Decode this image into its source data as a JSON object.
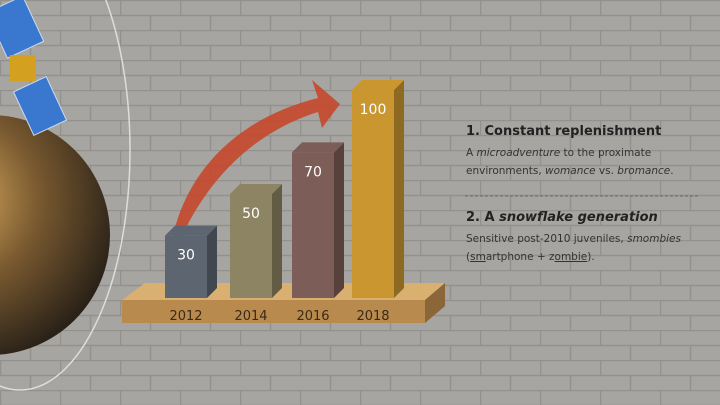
{
  "chart_data": {
    "type": "bar3d",
    "categories": [
      "2012",
      "2014",
      "2016",
      "2018"
    ],
    "values": [
      30,
      50,
      70,
      100
    ],
    "colors": [
      "#5d6670",
      "#8c8462",
      "#7d5d57",
      "#c9962f"
    ]
  },
  "notes": [
    {
      "heading": [
        {
          "text": "1. Constant replenishment"
        }
      ],
      "body": [
        {
          "text": "A "
        },
        {
          "text": "microadventure",
          "style": "italic"
        },
        {
          "text": " to the proximate environments, "
        },
        {
          "text": "womance",
          "style": "italic"
        },
        {
          "text": " vs. "
        },
        {
          "text": "bromance",
          "style": "italic"
        },
        {
          "text": "."
        }
      ]
    },
    {
      "heading": [
        {
          "text": "2. A "
        },
        {
          "text": "snowflake generation",
          "style": "italic"
        }
      ],
      "body": [
        {
          "text": "Sensitive post-2010 juveniles, "
        },
        {
          "text": "smombies",
          "style": "italic"
        },
        {
          "text": " ("
        },
        {
          "text": "sm",
          "style": "underline"
        },
        {
          "text": "artphone + z"
        },
        {
          "text": "ombie",
          "style": "underline"
        },
        {
          "text": ")."
        }
      ]
    }
  ]
}
